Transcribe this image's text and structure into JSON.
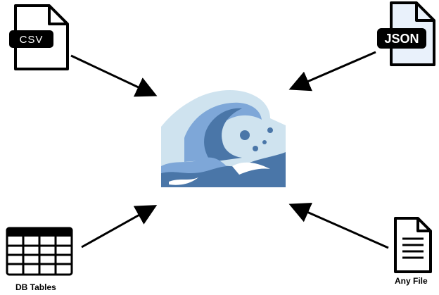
{
  "diagram": {
    "center": {
      "icon": "ocean-wave-icon"
    },
    "sources": [
      {
        "id": "csv",
        "icon": "csv-file-icon",
        "badge": "CSV"
      },
      {
        "id": "json",
        "icon": "json-file-icon",
        "badge": "JSON"
      },
      {
        "id": "db",
        "icon": "table-grid-icon",
        "caption": "DB Tables"
      },
      {
        "id": "any",
        "icon": "document-icon",
        "caption": "Any File"
      }
    ],
    "colors": {
      "stroke": "#000000",
      "wave_dark": "#4a76a8",
      "wave_mid": "#7ea7d8",
      "wave_light": "#cfe3ef",
      "json_bg": "#e9f1fb"
    }
  }
}
